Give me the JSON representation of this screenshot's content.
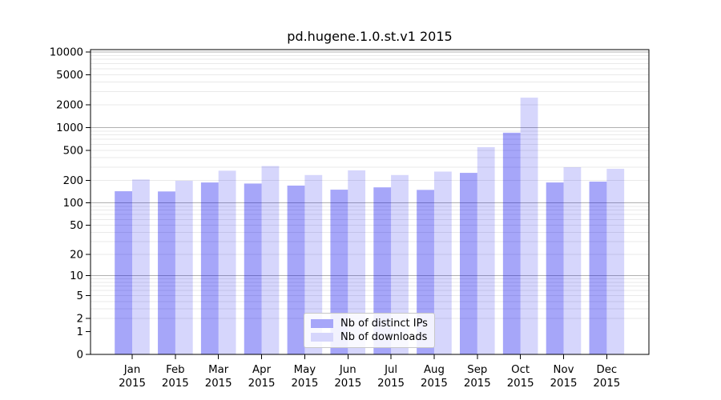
{
  "title": "pd.hugene.1.0.st.v1 2015",
  "chart_data": {
    "type": "bar",
    "title": "pd.hugene.1.0.st.v1 2015",
    "xlabel": "",
    "ylabel": "",
    "scale": "log1p",
    "grid": true,
    "legend_position": "lower center",
    "year": "2015",
    "categories": [
      "Jan",
      "Feb",
      "Mar",
      "Apr",
      "May",
      "Jun",
      "Jul",
      "Aug",
      "Sep",
      "Oct",
      "Nov",
      "Dec"
    ],
    "series": [
      {
        "name": "Nb of distinct IPs",
        "base_color": "#0000ee",
        "opacity": 0.35,
        "effective_color": "#a6a6f9",
        "values": [
          143,
          142,
          187,
          181,
          170,
          150,
          161,
          149,
          251,
          855,
          187,
          192
        ]
      },
      {
        "name": "Nb of downloads",
        "base_color": "#0000ee",
        "opacity": 0.16,
        "effective_color": "#d6d6fc",
        "values": [
          205,
          197,
          268,
          309,
          235,
          271,
          235,
          261,
          550,
          2490,
          298,
          284
        ]
      }
    ],
    "yticks": [
      0,
      1,
      2,
      5,
      10,
      20,
      50,
      100,
      200,
      500,
      1000,
      2000,
      5000,
      10000
    ],
    "ylim": [
      0,
      10000
    ],
    "colors": {
      "grid_major": "#b0b0b0",
      "grid_minor": "#e9e9e9",
      "axis": "#000000",
      "background": "#ffffff"
    }
  }
}
